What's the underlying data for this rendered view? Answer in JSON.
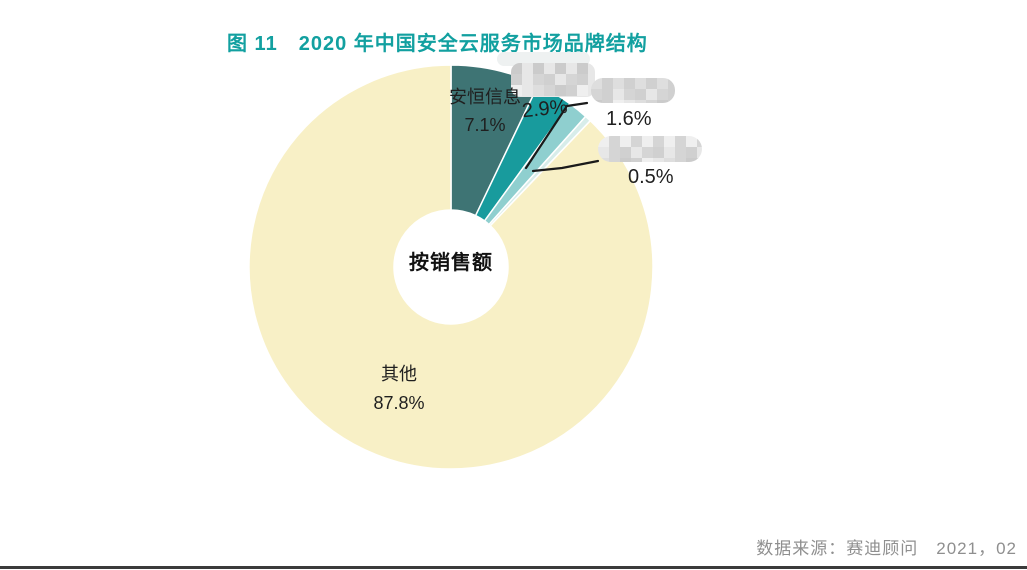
{
  "page": {
    "background": "#ffffff"
  },
  "chart_data": {
    "type": "pie",
    "subtype": "donut",
    "title": "图 11　2020 年中国安全云服务市场品牌结构",
    "center_label": "按销售额",
    "unit": "%",
    "direction": "clockwise",
    "start_angle_deg": 0,
    "legend": "none",
    "slices": [
      {
        "label": "安恒信息",
        "pct_label": "7.1%",
        "value": 7.1,
        "color": "#3E7474",
        "redacted": false
      },
      {
        "label": "",
        "pct_label": "2.9%",
        "value": 2.9,
        "color": "#189B9D",
        "redacted": true
      },
      {
        "label": "",
        "pct_label": "1.6%",
        "value": 1.6,
        "color": "#8FCFCF",
        "redacted": true
      },
      {
        "label": "",
        "pct_label": "0.5%",
        "value": 0.5,
        "color": "#D8EDEA",
        "redacted": true
      },
      {
        "label": "其他",
        "pct_label": "87.8%",
        "value": 87.8,
        "color": "#F8F0C6",
        "redacted": false
      }
    ]
  },
  "source_note": "数据来源：赛迪顾问　2021，02",
  "colors": {
    "title": "#12A0A0",
    "label_text": "#1f1f1f",
    "source_text": "#8f8f8f",
    "leader_line": "#1a1a1a",
    "slice_border": "#ffffff",
    "bottom_rule": "#3b3b3b",
    "mosaic_shades": [
      "#cbcbcb",
      "#d5d5d5",
      "#dedede",
      "#e7e7e7",
      "#efefef",
      "#d0d0d0"
    ]
  }
}
